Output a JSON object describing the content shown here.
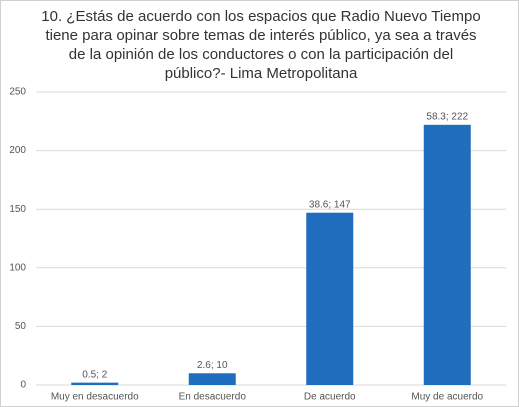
{
  "chart_data": {
    "type": "bar",
    "title": "10. ¿Estás de acuerdo con los espacios que Radio Nuevo Tiempo tiene para opinar sobre temas de interés público, ya sea a través de la opinión de los conductores o con la participación del público?- Lima Metropolitana",
    "categories": [
      "Muy en desacuerdo",
      "En desacuerdo",
      "De acuerdo",
      "Muy de acuerdo"
    ],
    "values": [
      2,
      10,
      147,
      222
    ],
    "value_labels": [
      "0.5; 2",
      "2.6; 10",
      "38.6; 147",
      "58.3; 222"
    ],
    "color": "#1f6dbc",
    "ylim": [
      0,
      250
    ],
    "yticks": [
      0,
      50,
      100,
      150,
      200,
      250
    ],
    "grid": true
  }
}
